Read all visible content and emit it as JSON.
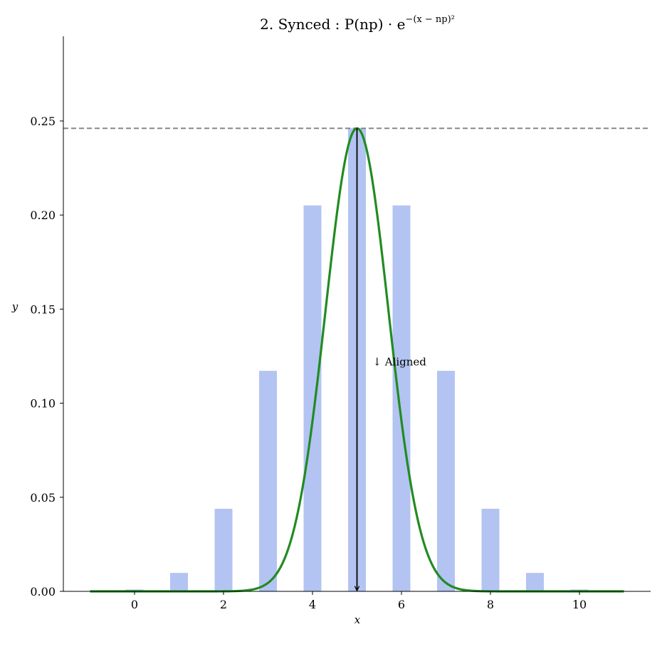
{
  "chart_data": {
    "type": "bar",
    "title": "2. Synced :  P(np) · e",
    "title_exponent": "−(x − np)²",
    "xlabel": "x",
    "ylabel": "y",
    "xlim": [
      -1.6,
      11.6
    ],
    "ylim": [
      0,
      0.295
    ],
    "x_ticks": [
      0,
      2,
      4,
      6,
      8,
      10
    ],
    "y_ticks": [
      0.0,
      0.05,
      0.1,
      0.15,
      0.2,
      0.25
    ],
    "grid": false,
    "bars": {
      "x": [
        0,
        1,
        2,
        3,
        4,
        5,
        6,
        7,
        8,
        9,
        10
      ],
      "values": [
        0.001,
        0.0098,
        0.0439,
        0.1172,
        0.2051,
        0.2461,
        0.2051,
        0.1172,
        0.0439,
        0.0098,
        0.001
      ],
      "width": 0.4,
      "color": "#b3c4f2"
    },
    "curve": {
      "function": "P(np) · e^{−(x − np)²}",
      "np": 5,
      "peak": 0.2461,
      "x_range": [
        -1,
        11
      ],
      "color": "#228b22"
    },
    "reference_line": {
      "y": 0.2461,
      "style": "dashed",
      "color": "#808080"
    },
    "annotation": {
      "text": "↓ Aligned",
      "text_x": 5.35,
      "text_y": 0.12,
      "arrow_x": 5,
      "arrow_from_y": 0.2461,
      "arrow_to_y": 0
    }
  }
}
